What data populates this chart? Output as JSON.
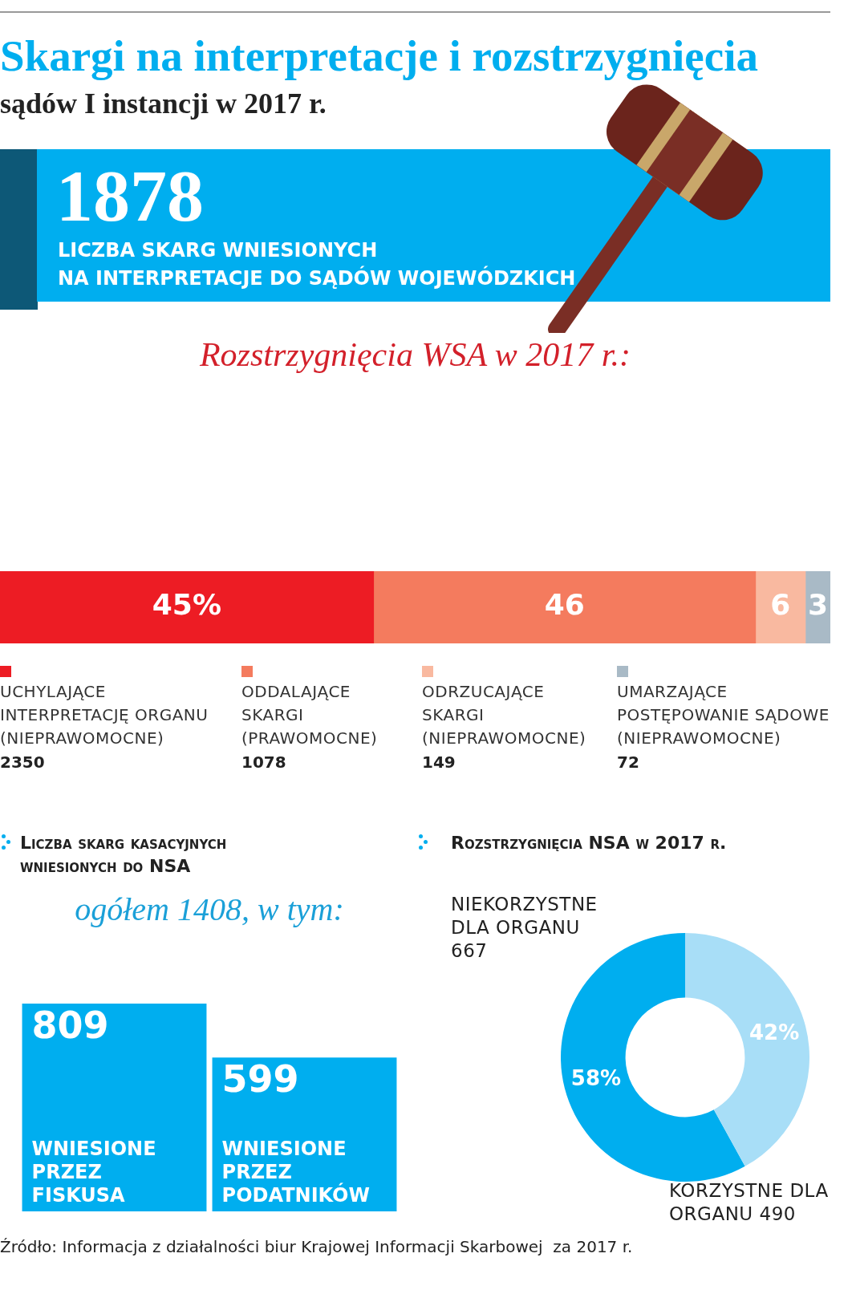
{
  "chart_data": [
    {
      "type": "other",
      "title": "Skargi na interpretacje i rozstrzygnięcia",
      "subtitle": "sądów I instancji w 2017 r.",
      "color": "#00aeef",
      "annotations": [
        "1878",
        "LICZBA SKARG WNIESIONYCH\nNA INTERPRETACJE DO SĄDÓW WOJEWÓDZKICH",
        "Źródło: Informacja z działalności biur Krajowej Informacji Skarbowej  za 2017 r."
      ]
    },
    {
      "type": "bar",
      "orientation": "horizontal",
      "stacked": true,
      "legend": "bottom",
      "title": "Rozstrzygnięcia WSA w 2017 r.:",
      "categories": [
        null
      ],
      "series": [
        {
          "name": "UCHYLAJĄCE\nINTERPRETACJĘ ORGANU\n(NIEPRAWOMOCNE)",
          "color": "#ed1c24",
          "values": [
            45
          ],
          "value_labels": [
            "45%"
          ]
        },
        {
          "name": "ODDALAJĄCE\nSKARGI\n(PRAWOMOCNE)",
          "color": "#f47b5e",
          "values": [
            46
          ],
          "value_labels": [
            "46"
          ]
        },
        {
          "name": "ODRZUCAJĄCE\nSKARGI\n(NIEPRAWOMOCNE)",
          "color": "#f9b9a0",
          "values": [
            6
          ],
          "value_labels": [
            "6"
          ]
        },
        {
          "name": "UMARZAJĄCE\nPOSTĘPOWANIE SĄDOWE\n(NIEPRAWOMOCNE)",
          "color": "#a9bac6",
          "values": [
            3
          ],
          "value_labels": [
            "3"
          ]
        }
      ],
      "annotations": [
        "2350",
        "1078",
        "149",
        "72"
      ]
    },
    {
      "type": "bar",
      "title": "Liczba skarg kasacyjnych wniesionych do NSA",
      "subtitle": "ogółem 1408, w tym:",
      "categories": [
        "WNIESIONE\nPRZEZ\nFISKUSA",
        "WNIESIONE\nPRZEZ\nPODATNIKÓW"
      ],
      "values": [
        809,
        599
      ],
      "color": "#00aeef",
      "data_labels": true
    },
    {
      "type": "donut",
      "title": "Rozstrzygnięcia NSA w 2017 r.",
      "categories": [
        "NIEKORZYSTNE\nDLA ORGANU\n667",
        "KORZYSTNE DLA\nORGANU 490"
      ],
      "values": [
        58,
        42
      ],
      "colors": [
        "#00aeef",
        "#a8def7"
      ],
      "value_labels": [
        "58%",
        "42%"
      ]
    }
  ]
}
